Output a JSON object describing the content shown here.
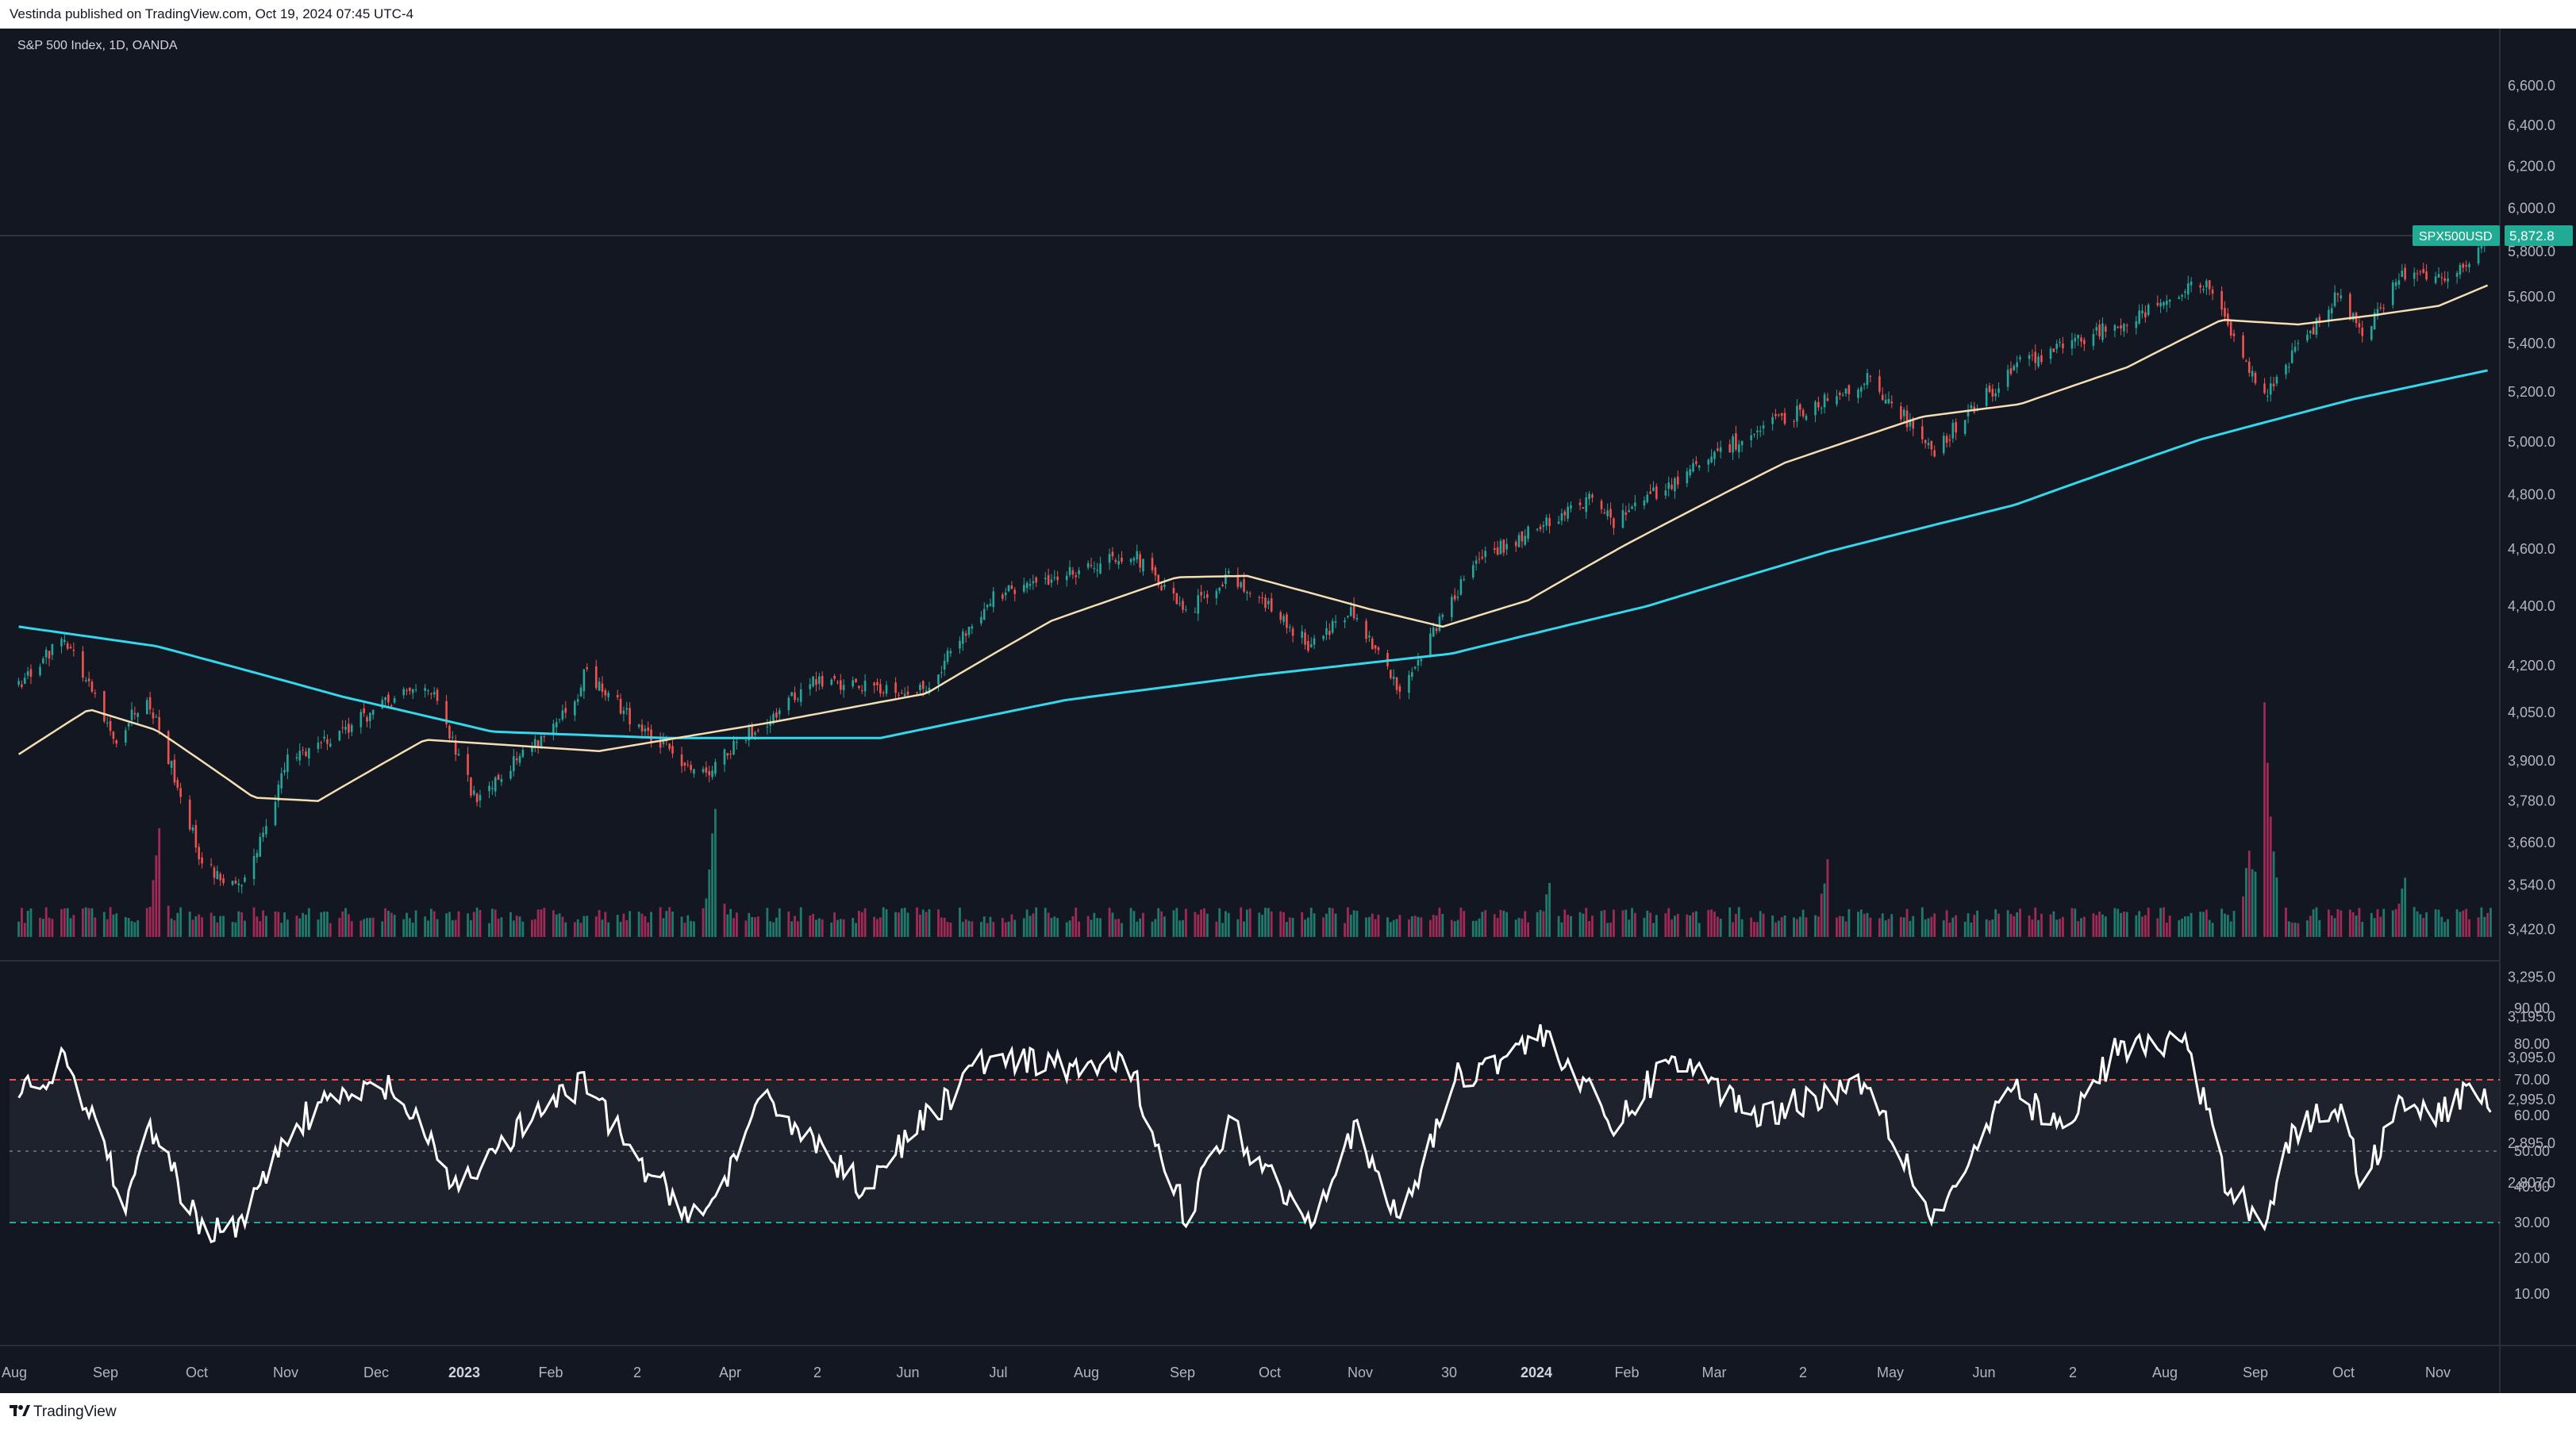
{
  "header": {
    "published": "Vestinda published on TradingView.com, Oct 19, 2024 07:45 UTC-4"
  },
  "chart": {
    "title": "S&P 500 Index, 1D, OANDA",
    "symbol_label": "SPX500USD",
    "last_price_label": "5,872.8",
    "colors": {
      "background": "#131722",
      "up": "#26a69a",
      "down": "#ef5350",
      "vol_up": "#1f7a6e",
      "vol_down": "#a02a55",
      "ma_fast": "#f5deb3",
      "ma_slow": "#35d7ea",
      "rsi": "#ffffff",
      "rsi_upper_band": "#ef5350",
      "rsi_lower_band": "#26a69a",
      "rsi_mid": "#787b86",
      "axis_text": "#b2b5be",
      "last_price_badge": "#22ab94"
    },
    "price_axis_ticks": [
      "6,600.0",
      "6,400.0",
      "6,200.0",
      "6,000.0",
      "5,800.0",
      "5,600.0",
      "5,400.0",
      "5,200.0",
      "5,000.0",
      "4,800.0",
      "4,600.0",
      "4,400.0",
      "4,200.0",
      "4,050.0",
      "3,900.0",
      "3,780.0",
      "3,660.0",
      "3,540.0",
      "3,420.0",
      "3,295.0",
      "3,195.0",
      "3,095.0",
      "2,995.0",
      "2,895.0",
      "2,807.0"
    ],
    "rsi_axis_ticks": [
      "90.00",
      "80.00",
      "70.00",
      "60.00",
      "50.00",
      "40.00",
      "30.00",
      "20.00",
      "10.00"
    ],
    "time_axis_ticks": [
      {
        "label": "Aug",
        "bold": false
      },
      {
        "label": "Sep",
        "bold": false
      },
      {
        "label": "Oct",
        "bold": false
      },
      {
        "label": "Nov",
        "bold": false
      },
      {
        "label": "Dec",
        "bold": false
      },
      {
        "label": "2023",
        "bold": true
      },
      {
        "label": "Feb",
        "bold": false
      },
      {
        "label": "2",
        "bold": false
      },
      {
        "label": "Apr",
        "bold": false
      },
      {
        "label": "2",
        "bold": false
      },
      {
        "label": "Jun",
        "bold": false
      },
      {
        "label": "Jul",
        "bold": false
      },
      {
        "label": "Aug",
        "bold": false
      },
      {
        "label": "Sep",
        "bold": false
      },
      {
        "label": "Oct",
        "bold": false
      },
      {
        "label": "Nov",
        "bold": false
      },
      {
        "label": "30",
        "bold": false
      },
      {
        "label": "2024",
        "bold": true
      },
      {
        "label": "Feb",
        "bold": false
      },
      {
        "label": "Mar",
        "bold": false
      },
      {
        "label": "2",
        "bold": false
      },
      {
        "label": "May",
        "bold": false
      },
      {
        "label": "Jun",
        "bold": false
      },
      {
        "label": "2",
        "bold": false
      },
      {
        "label": "Aug",
        "bold": false
      },
      {
        "label": "Sep",
        "bold": false
      },
      {
        "label": "Oct",
        "bold": false
      },
      {
        "label": "Nov",
        "bold": false
      }
    ]
  },
  "chart_data": {
    "type": "candlestick",
    "title": "S&P 500 Index, 1D, OANDA",
    "symbol": "SPX500USD",
    "last_price": 5872.8,
    "price_range": [
      3400,
      6650
    ],
    "price_anchors": [
      {
        "date": "2022-08-01",
        "close": 4130
      },
      {
        "date": "2022-08-16",
        "close": 4300
      },
      {
        "date": "2022-09-01",
        "close": 3960
      },
      {
        "date": "2022-09-12",
        "close": 4110
      },
      {
        "date": "2022-09-30",
        "close": 3600
      },
      {
        "date": "2022-10-13",
        "close": 3520
      },
      {
        "date": "2022-10-28",
        "close": 3900
      },
      {
        "date": "2022-11-30",
        "close": 4080
      },
      {
        "date": "2022-12-13",
        "close": 4140
      },
      {
        "date": "2022-12-28",
        "close": 3790
      },
      {
        "date": "2023-01-31",
        "close": 4075
      },
      {
        "date": "2023-02-02",
        "close": 4180
      },
      {
        "date": "2023-02-24",
        "close": 3970
      },
      {
        "date": "2023-03-13",
        "close": 3860
      },
      {
        "date": "2023-04-18",
        "close": 4150
      },
      {
        "date": "2023-05-24",
        "close": 4120
      },
      {
        "date": "2023-06-15",
        "close": 4425
      },
      {
        "date": "2023-07-31",
        "close": 4590
      },
      {
        "date": "2023-08-18",
        "close": 4370
      },
      {
        "date": "2023-09-01",
        "close": 4515
      },
      {
        "date": "2023-09-27",
        "close": 4275
      },
      {
        "date": "2023-10-11",
        "close": 4375
      },
      {
        "date": "2023-10-27",
        "close": 4120
      },
      {
        "date": "2023-11-20",
        "close": 4545
      },
      {
        "date": "2023-12-28",
        "close": 4785
      },
      {
        "date": "2024-01-05",
        "close": 4700
      },
      {
        "date": "2024-02-14",
        "close": 5000
      },
      {
        "date": "2024-03-28",
        "close": 5250
      },
      {
        "date": "2024-04-19",
        "close": 4970
      },
      {
        "date": "2024-05-15",
        "close": 5300
      },
      {
        "date": "2024-06-17",
        "close": 5480
      },
      {
        "date": "2024-07-16",
        "close": 5660
      },
      {
        "date": "2024-08-05",
        "close": 5190
      },
      {
        "date": "2024-08-30",
        "close": 5620
      },
      {
        "date": "2024-09-06",
        "close": 5410
      },
      {
        "date": "2024-09-19",
        "close": 5710
      },
      {
        "date": "2024-10-07",
        "close": 5700
      },
      {
        "date": "2024-10-18",
        "close": 5872.8
      }
    ],
    "ma_fast_anchors": [
      {
        "date": "2022-08-01",
        "value": 3920
      },
      {
        "date": "2022-08-24",
        "value": 4060
      },
      {
        "date": "2022-09-15",
        "value": 3995
      },
      {
        "date": "2022-10-17",
        "value": 3790
      },
      {
        "date": "2022-11-07",
        "value": 3780
      },
      {
        "date": "2022-12-12",
        "value": 3965
      },
      {
        "date": "2023-02-07",
        "value": 3930
      },
      {
        "date": "2023-04-05",
        "value": 4020
      },
      {
        "date": "2023-05-25",
        "value": 4110
      },
      {
        "date": "2023-07-05",
        "value": 4350
      },
      {
        "date": "2023-08-15",
        "value": 4500
      },
      {
        "date": "2023-09-07",
        "value": 4505
      },
      {
        "date": "2023-10-17",
        "value": 4390
      },
      {
        "date": "2023-11-10",
        "value": 4330
      },
      {
        "date": "2023-12-08",
        "value": 4420
      },
      {
        "date": "2024-01-08",
        "value": 4610
      },
      {
        "date": "2024-03-01",
        "value": 4920
      },
      {
        "date": "2024-04-15",
        "value": 5100
      },
      {
        "date": "2024-05-17",
        "value": 5150
      },
      {
        "date": "2024-06-21",
        "value": 5300
      },
      {
        "date": "2024-07-22",
        "value": 5500
      },
      {
        "date": "2024-08-16",
        "value": 5480
      },
      {
        "date": "2024-09-10",
        "value": 5520
      },
      {
        "date": "2024-10-01",
        "value": 5560
      },
      {
        "date": "2024-10-18",
        "value": 5655
      }
    ],
    "ma_slow_anchors": [
      {
        "date": "2022-08-01",
        "value": 4330
      },
      {
        "date": "2022-09-15",
        "value": 4265
      },
      {
        "date": "2022-11-15",
        "value": 4100
      },
      {
        "date": "2023-01-03",
        "value": 3990
      },
      {
        "date": "2023-03-01",
        "value": 3970
      },
      {
        "date": "2023-05-10",
        "value": 3970
      },
      {
        "date": "2023-07-10",
        "value": 4090
      },
      {
        "date": "2023-09-11",
        "value": 4170
      },
      {
        "date": "2023-11-13",
        "value": 4240
      },
      {
        "date": "2024-01-16",
        "value": 4400
      },
      {
        "date": "2024-03-15",
        "value": 4590
      },
      {
        "date": "2024-05-15",
        "value": 4760
      },
      {
        "date": "2024-07-15",
        "value": 5010
      },
      {
        "date": "2024-09-03",
        "value": 5170
      },
      {
        "date": "2024-10-18",
        "value": 5290
      }
    ],
    "volume_spikes": [
      {
        "date": "2022-09-16",
        "relative": 0.45
      },
      {
        "date": "2023-03-17",
        "relative": 0.55
      },
      {
        "date": "2023-12-15",
        "relative": 0.22
      },
      {
        "date": "2024-03-15",
        "relative": 0.3
      },
      {
        "date": "2024-07-31",
        "relative": 0.35
      },
      {
        "date": "2024-08-05",
        "relative": 1.0
      },
      {
        "date": "2024-08-07",
        "relative": 0.45
      },
      {
        "date": "2024-09-20",
        "relative": 0.25
      }
    ],
    "rsi": {
      "upper_band": 70,
      "middle": 50,
      "lower_band": 30,
      "range": [
        0,
        100
      ],
      "anchors": [
        {
          "date": "2022-08-01",
          "value": 66
        },
        {
          "date": "2022-08-16",
          "value": 75
        },
        {
          "date": "2022-09-06",
          "value": 35
        },
        {
          "date": "2022-09-12",
          "value": 57
        },
        {
          "date": "2022-09-30",
          "value": 28
        },
        {
          "date": "2022-10-14",
          "value": 31
        },
        {
          "date": "2022-10-28",
          "value": 56
        },
        {
          "date": "2022-11-11",
          "value": 64
        },
        {
          "date": "2022-12-01",
          "value": 68
        },
        {
          "date": "2022-12-22",
          "value": 40
        },
        {
          "date": "2023-01-20",
          "value": 62
        },
        {
          "date": "2023-02-02",
          "value": 69
        },
        {
          "date": "2023-02-24",
          "value": 42
        },
        {
          "date": "2023-03-13",
          "value": 31
        },
        {
          "date": "2023-04-03",
          "value": 65
        },
        {
          "date": "2023-05-04",
          "value": 40
        },
        {
          "date": "2023-06-12",
          "value": 75
        },
        {
          "date": "2023-07-31",
          "value": 73
        },
        {
          "date": "2023-08-18",
          "value": 32
        },
        {
          "date": "2023-09-01",
          "value": 58
        },
        {
          "date": "2023-09-27",
          "value": 31
        },
        {
          "date": "2023-10-12",
          "value": 56
        },
        {
          "date": "2023-10-27",
          "value": 30
        },
        {
          "date": "2023-11-14",
          "value": 70
        },
        {
          "date": "2023-12-14",
          "value": 83
        },
        {
          "date": "2024-01-05",
          "value": 56
        },
        {
          "date": "2024-01-24",
          "value": 77
        },
        {
          "date": "2024-02-21",
          "value": 60
        },
        {
          "date": "2024-03-28",
          "value": 70
        },
        {
          "date": "2024-04-19",
          "value": 31
        },
        {
          "date": "2024-05-15",
          "value": 68
        },
        {
          "date": "2024-05-31",
          "value": 55
        },
        {
          "date": "2024-06-17",
          "value": 78
        },
        {
          "date": "2024-07-10",
          "value": 81
        },
        {
          "date": "2024-07-24",
          "value": 40
        },
        {
          "date": "2024-08-05",
          "value": 31
        },
        {
          "date": "2024-08-14",
          "value": 55
        },
        {
          "date": "2024-08-30",
          "value": 63
        },
        {
          "date": "2024-09-06",
          "value": 40
        },
        {
          "date": "2024-09-19",
          "value": 66
        },
        {
          "date": "2024-10-01",
          "value": 60
        },
        {
          "date": "2024-10-14",
          "value": 68
        },
        {
          "date": "2024-10-18",
          "value": 65
        }
      ]
    }
  }
}
